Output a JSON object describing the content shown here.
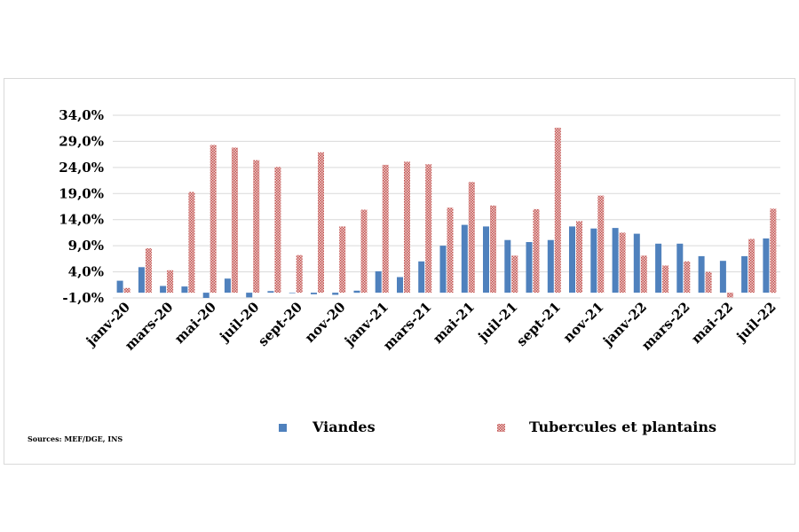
{
  "chart_data": {
    "type": "bar",
    "title": "",
    "xlabel": "",
    "ylabel": "",
    "ylim": [
      -1.0,
      34.0
    ],
    "yticks": [
      "34,0%",
      "29,0%",
      "24,0%",
      "19,0%",
      "14,0%",
      "9,0%",
      "4,0%",
      "-1,0%"
    ],
    "ytick_values": [
      34,
      29,
      24,
      19,
      14,
      9,
      4,
      -1
    ],
    "grid": true,
    "legend_position": "bottom",
    "categories": [
      "janv-20",
      "févr-20",
      "mars-20",
      "avr-20",
      "mai-20",
      "juin-20",
      "juil-20",
      "août-20",
      "sept-20",
      "oct-20",
      "nov-20",
      "déc-20",
      "janv-21",
      "févr-21",
      "mars-21",
      "avr-21",
      "mai-21",
      "juin-21",
      "juil-21",
      "août-21",
      "sept-21",
      "oct-21",
      "nov-21",
      "déc-21",
      "janv-22",
      "févr-22",
      "mars-22",
      "avr-22",
      "mai-22",
      "juin-22",
      "juil-22"
    ],
    "xtick_labels": [
      "janv-20",
      "mars-20",
      "mai-20",
      "juil-20",
      "sept-20",
      "nov-20",
      "janv-21",
      "mars-21",
      "mai-21",
      "juil-21",
      "sept-21",
      "nov-21",
      "janv-22",
      "mars-22",
      "mai-22",
      "juil-22"
    ],
    "series": [
      {
        "name": "Viandes",
        "color": "#4f81bd",
        "values": [
          2.3,
          4.9,
          1.3,
          1.2,
          -1.0,
          2.7,
          -0.9,
          0.3,
          0.0,
          -0.3,
          -0.4,
          0.4,
          4.1,
          3.0,
          6.0,
          9.0,
          13.0,
          12.7,
          10.1,
          9.7,
          10.1,
          12.7,
          12.3,
          12.4,
          11.3,
          9.4,
          9.4,
          7.0,
          6.1,
          7.0,
          10.4
        ]
      },
      {
        "name": "Tubercules et plantains",
        "color": "#c0504d",
        "values": [
          0.9,
          8.5,
          4.3,
          19.3,
          28.3,
          27.8,
          25.4,
          24.1,
          7.2,
          26.9,
          12.7,
          15.9,
          24.5,
          25.1,
          24.6,
          16.3,
          21.2,
          16.7,
          7.1,
          16.0,
          31.6,
          13.7,
          18.6,
          11.5,
          7.1,
          5.2,
          6.0,
          4.0,
          -0.9,
          10.3,
          16.1
        ]
      }
    ],
    "source": "Sources: MEF/DGE, INS"
  }
}
